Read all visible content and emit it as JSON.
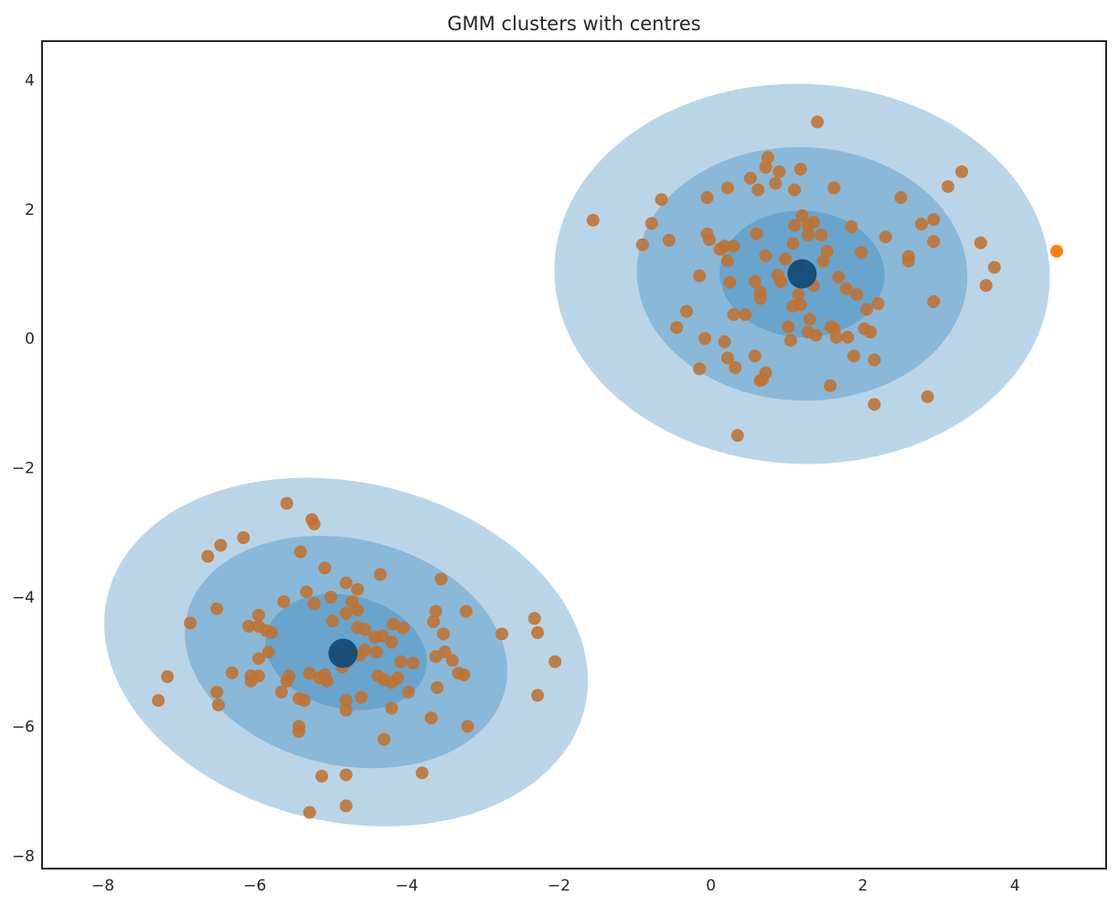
{
  "chart_data": {
    "type": "scatter",
    "title": "GMM clusters with centres",
    "xlabel": "",
    "ylabel": "",
    "xlim": [
      -8.8,
      5.2
    ],
    "ylim": [
      -8.2,
      4.6
    ],
    "xticks": [
      -8,
      -6,
      -4,
      -2,
      0,
      2,
      4
    ],
    "yticks": [
      -8,
      -6,
      -4,
      -2,
      0,
      2,
      4
    ],
    "grid": false,
    "legend": "none",
    "colors": {
      "point": "#c0712f",
      "point_outlier": "#ff7f0e",
      "centre": "#0d4a75",
      "ellipse": "#1f77b4",
      "axes": "#262626"
    },
    "ellipses": [
      {
        "center": [
          1.2,
          1.0
        ],
        "width": 6.52,
        "height": 5.88,
        "angle_deg": -2,
        "opacity": 0.31
      },
      {
        "center": [
          1.2,
          1.0
        ],
        "width": 4.35,
        "height": 3.92,
        "angle_deg": -2,
        "opacity": 0.31
      },
      {
        "center": [
          1.2,
          1.0
        ],
        "width": 2.17,
        "height": 1.96,
        "angle_deg": -2,
        "opacity": 0.31
      },
      {
        "center": [
          -4.8,
          -4.85
        ],
        "width": 6.45,
        "height": 5.25,
        "angle_deg": -13,
        "opacity": 0.31
      },
      {
        "center": [
          -4.8,
          -4.85
        ],
        "width": 4.3,
        "height": 3.5,
        "angle_deg": -13,
        "opacity": 0.31
      },
      {
        "center": [
          -4.8,
          -4.85
        ],
        "width": 2.15,
        "height": 1.75,
        "angle_deg": -13,
        "opacity": 0.31
      }
    ],
    "centres": [
      {
        "x": 1.2,
        "y": 1.0
      },
      {
        "x": -4.84,
        "y": -4.87
      }
    ],
    "outliers": [
      {
        "x": 4.55,
        "y": 1.35
      }
    ],
    "points": [
      [
        1.4,
        3.35
      ],
      [
        -1.55,
        1.83
      ],
      [
        -0.65,
        2.15
      ],
      [
        -0.78,
        1.78
      ],
      [
        -0.9,
        1.45
      ],
      [
        -0.55,
        1.52
      ],
      [
        -0.05,
        2.18
      ],
      [
        0.22,
        2.33
      ],
      [
        0.52,
        2.48
      ],
      [
        0.62,
        2.3
      ],
      [
        0.72,
        2.65
      ],
      [
        0.75,
        2.8
      ],
      [
        0.9,
        2.58
      ],
      [
        0.85,
        2.4
      ],
      [
        1.1,
        2.3
      ],
      [
        1.18,
        2.62
      ],
      [
        1.62,
        2.33
      ],
      [
        2.5,
        2.18
      ],
      [
        3.3,
        2.58
      ],
      [
        3.12,
        2.35
      ],
      [
        2.77,
        1.77
      ],
      [
        2.93,
        1.84
      ],
      [
        2.93,
        1.5
      ],
      [
        3.55,
        1.48
      ],
      [
        3.73,
        1.1
      ],
      [
        3.62,
        0.82
      ],
      [
        2.6,
        1.27
      ],
      [
        2.6,
        1.2
      ],
      [
        2.3,
        1.57
      ],
      [
        1.98,
        1.33
      ],
      [
        1.85,
        1.73
      ],
      [
        2.93,
        0.57
      ],
      [
        2.2,
        0.54
      ],
      [
        2.05,
        0.45
      ],
      [
        1.92,
        0.68
      ],
      [
        1.78,
        0.77
      ],
      [
        1.68,
        0.95
      ],
      [
        1.28,
        1.6
      ],
      [
        1.2,
        1.9
      ],
      [
        1.28,
        1.75
      ],
      [
        1.35,
        1.8
      ],
      [
        1.1,
        1.75
      ],
      [
        1.45,
        1.6
      ],
      [
        1.08,
        1.47
      ],
      [
        1.53,
        1.35
      ],
      [
        1.48,
        1.2
      ],
      [
        0.6,
        1.62
      ],
      [
        0.72,
        1.28
      ],
      [
        0.98,
        1.23
      ],
      [
        0.88,
        0.98
      ],
      [
        1.15,
        1.12
      ],
      [
        0.58,
        0.88
      ],
      [
        0.92,
        0.88
      ],
      [
        1.35,
        0.82
      ],
      [
        -0.15,
        0.97
      ],
      [
        0.22,
        1.2
      ],
      [
        0.25,
        0.87
      ],
      [
        0.3,
        1.43
      ],
      [
        0.18,
        1.43
      ],
      [
        0.12,
        1.38
      ],
      [
        -0.05,
        1.62
      ],
      [
        -0.02,
        1.53
      ],
      [
        0.65,
        0.72
      ],
      [
        0.65,
        0.62
      ],
      [
        1.15,
        0.68
      ],
      [
        1.08,
        0.5
      ],
      [
        1.18,
        0.52
      ],
      [
        1.3,
        0.3
      ],
      [
        1.02,
        0.18
      ],
      [
        1.28,
        0.1
      ],
      [
        1.38,
        0.05
      ],
      [
        1.58,
        0.18
      ],
      [
        1.62,
        0.15
      ],
      [
        1.65,
        0.02
      ],
      [
        1.8,
        0.02
      ],
      [
        2.02,
        0.15
      ],
      [
        2.1,
        0.1
      ],
      [
        1.88,
        -0.27
      ],
      [
        2.15,
        -0.33
      ],
      [
        0.3,
        0.37
      ],
      [
        0.45,
        0.37
      ],
      [
        -0.32,
        0.42
      ],
      [
        -0.45,
        0.17
      ],
      [
        -0.08,
        0.0
      ],
      [
        0.18,
        -0.05
      ],
      [
        0.22,
        -0.3
      ],
      [
        0.32,
        -0.45
      ],
      [
        0.58,
        -0.27
      ],
      [
        0.68,
        -0.63
      ],
      [
        0.72,
        -0.53
      ],
      [
        0.65,
        -0.65
      ],
      [
        -0.15,
        -0.47
      ],
      [
        1.05,
        -0.03
      ],
      [
        1.57,
        -0.73
      ],
      [
        2.15,
        -1.02
      ],
      [
        2.85,
        -0.9
      ],
      [
        0.35,
        -1.5
      ],
      [
        -5.58,
        -2.55
      ],
      [
        -5.25,
        -2.8
      ],
      [
        -5.22,
        -2.87
      ],
      [
        -6.15,
        -3.08
      ],
      [
        -6.45,
        -3.2
      ],
      [
        -6.62,
        -3.37
      ],
      [
        -5.4,
        -3.3
      ],
      [
        -5.08,
        -3.55
      ],
      [
        -4.35,
        -3.65
      ],
      [
        -3.55,
        -3.72
      ],
      [
        -4.8,
        -3.78
      ],
      [
        -4.65,
        -3.88
      ],
      [
        -5.32,
        -3.92
      ],
      [
        -5.0,
        -4.0
      ],
      [
        -5.22,
        -4.1
      ],
      [
        -5.62,
        -4.07
      ],
      [
        -4.72,
        -4.07
      ],
      [
        -4.8,
        -4.25
      ],
      [
        -4.65,
        -4.2
      ],
      [
        -3.62,
        -4.22
      ],
      [
        -3.22,
        -4.22
      ],
      [
        -6.5,
        -4.18
      ],
      [
        -5.95,
        -4.28
      ],
      [
        -5.95,
        -4.45
      ],
      [
        -6.08,
        -4.45
      ],
      [
        -5.85,
        -4.52
      ],
      [
        -5.78,
        -4.55
      ],
      [
        -6.85,
        -4.4
      ],
      [
        -4.98,
        -4.37
      ],
      [
        -4.65,
        -4.47
      ],
      [
        -4.55,
        -4.5
      ],
      [
        -4.18,
        -4.42
      ],
      [
        -4.05,
        -4.48
      ],
      [
        -3.65,
        -4.38
      ],
      [
        -2.75,
        -4.57
      ],
      [
        -3.52,
        -4.57
      ],
      [
        -2.32,
        -4.33
      ],
      [
        -2.28,
        -4.55
      ],
      [
        -5.82,
        -4.85
      ],
      [
        -5.95,
        -4.95
      ],
      [
        -4.42,
        -4.62
      ],
      [
        -4.32,
        -4.6
      ],
      [
        -4.2,
        -4.7
      ],
      [
        -4.4,
        -4.85
      ],
      [
        -4.55,
        -4.82
      ],
      [
        -4.75,
        -4.85
      ],
      [
        -4.9,
        -4.88
      ],
      [
        -3.5,
        -4.85
      ],
      [
        -3.62,
        -4.92
      ],
      [
        -3.4,
        -4.98
      ],
      [
        -4.08,
        -5.0
      ],
      [
        -3.92,
        -5.02
      ],
      [
        -4.62,
        -4.9
      ],
      [
        -4.8,
        -5.02
      ],
      [
        -4.85,
        -5.08
      ],
      [
        -2.05,
        -5.0
      ],
      [
        -6.3,
        -5.17
      ],
      [
        -5.95,
        -5.22
      ],
      [
        -6.05,
        -5.22
      ],
      [
        -6.05,
        -5.3
      ],
      [
        -5.55,
        -5.22
      ],
      [
        -5.58,
        -5.3
      ],
      [
        -5.28,
        -5.18
      ],
      [
        -5.08,
        -5.2
      ],
      [
        -5.15,
        -5.25
      ],
      [
        -5.05,
        -5.3
      ],
      [
        -4.38,
        -5.22
      ],
      [
        -4.3,
        -5.28
      ],
      [
        -4.2,
        -5.32
      ],
      [
        -4.12,
        -5.25
      ],
      [
        -3.32,
        -5.18
      ],
      [
        -3.25,
        -5.2
      ],
      [
        -7.15,
        -5.23
      ],
      [
        -7.27,
        -5.6
      ],
      [
        -6.5,
        -5.47
      ],
      [
        -6.48,
        -5.67
      ],
      [
        -5.65,
        -5.47
      ],
      [
        -5.42,
        -5.57
      ],
      [
        -5.35,
        -5.6
      ],
      [
        -3.6,
        -5.4
      ],
      [
        -3.98,
        -5.47
      ],
      [
        -4.6,
        -5.55
      ],
      [
        -4.8,
        -5.6
      ],
      [
        -4.8,
        -5.75
      ],
      [
        -4.2,
        -5.72
      ],
      [
        -2.28,
        -5.52
      ],
      [
        -3.68,
        -5.87
      ],
      [
        -3.2,
        -6.0
      ],
      [
        -5.42,
        -6.0
      ],
      [
        -5.42,
        -6.08
      ],
      [
        -4.3,
        -6.2
      ],
      [
        -5.12,
        -6.77
      ],
      [
        -4.8,
        -6.75
      ],
      [
        -3.8,
        -6.72
      ],
      [
        -4.8,
        -7.23
      ],
      [
        -5.28,
        -7.33
      ]
    ]
  }
}
